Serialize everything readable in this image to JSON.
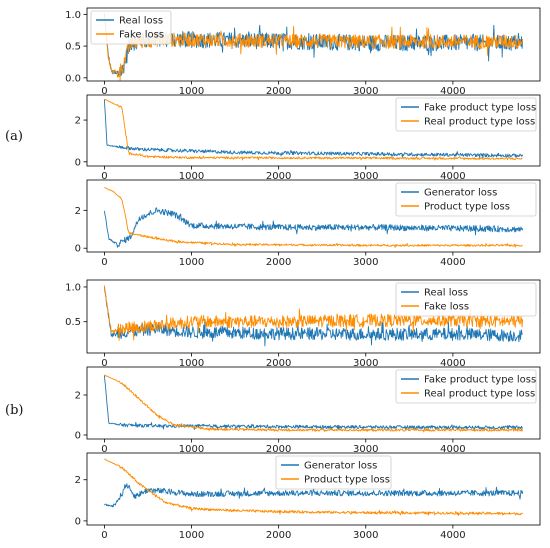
{
  "panel_labels": {
    "a": "(a)",
    "b": "(b)"
  },
  "colors": {
    "blue": "#1f77b4",
    "orange": "#ff8c00"
  },
  "chart_data": [
    {
      "id": "a1",
      "type": "line",
      "xlim": [
        -200,
        5000
      ],
      "ylim": [
        -0.05,
        1.1
      ],
      "xticks": [
        0,
        1000,
        2000,
        3000,
        4000
      ],
      "yticks": [
        0.0,
        0.5,
        1.0
      ],
      "yticklabels": [
        "0.0",
        "0.5",
        "1.0"
      ],
      "legend_position": "top-left",
      "series": [
        {
          "name": "Real loss",
          "color": "#1f77b4",
          "points": [
            [
              0,
              1.0
            ],
            [
              40,
              0.4
            ],
            [
              80,
              0.1
            ],
            [
              150,
              0.05
            ],
            [
              200,
              0.1
            ],
            [
              300,
              0.55
            ],
            [
              600,
              0.62
            ],
            [
              1000,
              0.6
            ],
            [
              2000,
              0.58
            ],
            [
              3000,
              0.55
            ],
            [
              4000,
              0.55
            ],
            [
              4800,
              0.55
            ]
          ],
          "noise": 0.13
        },
        {
          "name": "Fake loss",
          "color": "#ff8c00",
          "points": [
            [
              0,
              1.0
            ],
            [
              40,
              0.35
            ],
            [
              80,
              0.12
            ],
            [
              150,
              0.08
            ],
            [
              200,
              0.15
            ],
            [
              300,
              0.55
            ],
            [
              600,
              0.6
            ],
            [
              1000,
              0.6
            ],
            [
              2000,
              0.58
            ],
            [
              3000,
              0.57
            ],
            [
              4000,
              0.57
            ],
            [
              4800,
              0.57
            ]
          ],
          "noise": 0.11
        }
      ]
    },
    {
      "id": "a2",
      "type": "line",
      "xlim": [
        -200,
        5000
      ],
      "ylim": [
        -0.2,
        3.2
      ],
      "xticks": [
        0,
        1000,
        2000,
        3000,
        4000
      ],
      "yticks": [
        0,
        2
      ],
      "yticklabels": [
        "0",
        "2"
      ],
      "legend_position": "top-right",
      "series": [
        {
          "name": "Fake product type loss",
          "color": "#1f77b4",
          "points": [
            [
              0,
              3.0
            ],
            [
              30,
              0.8
            ],
            [
              100,
              0.75
            ],
            [
              400,
              0.6
            ],
            [
              800,
              0.55
            ],
            [
              1500,
              0.45
            ],
            [
              3000,
              0.38
            ],
            [
              4800,
              0.3
            ]
          ],
          "noise": 0.08
        },
        {
          "name": "Real product type loss",
          "color": "#ff8c00",
          "points": [
            [
              0,
              3.0
            ],
            [
              100,
              2.8
            ],
            [
              200,
              2.6
            ],
            [
              280,
              0.4
            ],
            [
              500,
              0.25
            ],
            [
              1000,
              0.2
            ],
            [
              3000,
              0.18
            ],
            [
              4800,
              0.15
            ]
          ],
          "noise": 0.05
        }
      ]
    },
    {
      "id": "a3",
      "type": "line",
      "xlim": [
        -200,
        5000
      ],
      "ylim": [
        -0.2,
        3.6
      ],
      "xticks": [
        0,
        1000,
        2000,
        3000,
        4000
      ],
      "yticks": [
        0,
        2
      ],
      "yticklabels": [
        "0",
        "2"
      ],
      "legend_position": "top-right",
      "series": [
        {
          "name": "Generator loss",
          "color": "#1f77b4",
          "points": [
            [
              0,
              2.0
            ],
            [
              50,
              0.5
            ],
            [
              150,
              0.2
            ],
            [
              300,
              0.6
            ],
            [
              400,
              1.6
            ],
            [
              600,
              2.0
            ],
            [
              800,
              1.8
            ],
            [
              1000,
              1.2
            ],
            [
              2000,
              1.1
            ],
            [
              3000,
              1.1
            ],
            [
              4000,
              1.05
            ],
            [
              4800,
              1.0
            ]
          ],
          "noise": 0.16
        },
        {
          "name": "Product type loss",
          "color": "#ff8c00",
          "points": [
            [
              0,
              3.2
            ],
            [
              100,
              3.0
            ],
            [
              200,
              2.6
            ],
            [
              280,
              0.8
            ],
            [
              500,
              0.6
            ],
            [
              800,
              0.35
            ],
            [
              1500,
              0.2
            ],
            [
              3000,
              0.15
            ],
            [
              4800,
              0.15
            ]
          ],
          "noise": 0.05
        }
      ]
    },
    {
      "id": "b1",
      "type": "line",
      "xlim": [
        -200,
        5000
      ],
      "ylim": [
        0.05,
        1.1
      ],
      "xticks": [
        0,
        1000,
        2000,
        3000,
        4000
      ],
      "yticks": [
        0.5,
        1.0
      ],
      "yticklabels": [
        "0.5",
        "1.0"
      ],
      "legend_position": "top-right",
      "series": [
        {
          "name": "Real loss",
          "color": "#1f77b4",
          "points": [
            [
              0,
              1.0
            ],
            [
              80,
              0.3
            ],
            [
              200,
              0.35
            ],
            [
              600,
              0.4
            ],
            [
              1000,
              0.35
            ],
            [
              2000,
              0.33
            ],
            [
              3000,
              0.32
            ],
            [
              4000,
              0.32
            ],
            [
              4800,
              0.3
            ]
          ],
          "noise": 0.09
        },
        {
          "name": "Fake loss",
          "color": "#ff8c00",
          "points": [
            [
              0,
              1.0
            ],
            [
              80,
              0.35
            ],
            [
              200,
              0.4
            ],
            [
              600,
              0.45
            ],
            [
              1000,
              0.5
            ],
            [
              2000,
              0.5
            ],
            [
              3000,
              0.52
            ],
            [
              4000,
              0.52
            ],
            [
              4800,
              0.5
            ]
          ],
          "noise": 0.09
        }
      ]
    },
    {
      "id": "b2",
      "type": "line",
      "xlim": [
        -200,
        5000
      ],
      "ylim": [
        -0.2,
        3.4
      ],
      "xticks": [
        0,
        1000,
        2000,
        3000,
        4000
      ],
      "yticks": [
        0,
        2
      ],
      "yticklabels": [
        "0",
        "2"
      ],
      "legend_position": "top-right",
      "series": [
        {
          "name": "Fake product type loss",
          "color": "#1f77b4",
          "points": [
            [
              0,
              3.0
            ],
            [
              50,
              0.6
            ],
            [
              200,
              0.5
            ],
            [
              600,
              0.45
            ],
            [
              1000,
              0.45
            ],
            [
              2000,
              0.42
            ],
            [
              3000,
              0.4
            ],
            [
              4800,
              0.38
            ]
          ],
          "noise": 0.08
        },
        {
          "name": "Real product type loss",
          "color": "#ff8c00",
          "points": [
            [
              0,
              3.0
            ],
            [
              200,
              2.6
            ],
            [
              400,
              1.8
            ],
            [
              600,
              1.0
            ],
            [
              800,
              0.5
            ],
            [
              1200,
              0.3
            ],
            [
              2000,
              0.25
            ],
            [
              3000,
              0.25
            ],
            [
              4800,
              0.25
            ]
          ],
          "noise": 0.06
        }
      ]
    },
    {
      "id": "b3",
      "type": "line",
      "xlim": [
        -200,
        5000
      ],
      "ylim": [
        -0.2,
        3.3
      ],
      "xticks": [
        0,
        1000,
        2000,
        3000,
        4000
      ],
      "yticks": [
        0,
        2
      ],
      "yticklabels": [
        "0",
        "2"
      ],
      "legend_position": "top-center",
      "series": [
        {
          "name": "Generator loss",
          "color": "#1f77b4",
          "points": [
            [
              0,
              0.8
            ],
            [
              100,
              0.7
            ],
            [
              200,
              1.3
            ],
            [
              250,
              1.8
            ],
            [
              350,
              1.2
            ],
            [
              500,
              1.5
            ],
            [
              800,
              1.4
            ],
            [
              1000,
              1.3
            ],
            [
              2000,
              1.35
            ],
            [
              3000,
              1.35
            ],
            [
              4000,
              1.35
            ],
            [
              4800,
              1.35
            ]
          ],
          "noise": 0.14
        },
        {
          "name": "Product type loss",
          "color": "#ff8c00",
          "points": [
            [
              0,
              3.0
            ],
            [
              200,
              2.6
            ],
            [
              400,
              1.8
            ],
            [
              700,
              0.9
            ],
            [
              1000,
              0.6
            ],
            [
              1500,
              0.5
            ],
            [
              2000,
              0.45
            ],
            [
              3000,
              0.4
            ],
            [
              4000,
              0.38
            ],
            [
              4800,
              0.35
            ]
          ],
          "noise": 0.06
        }
      ]
    }
  ]
}
